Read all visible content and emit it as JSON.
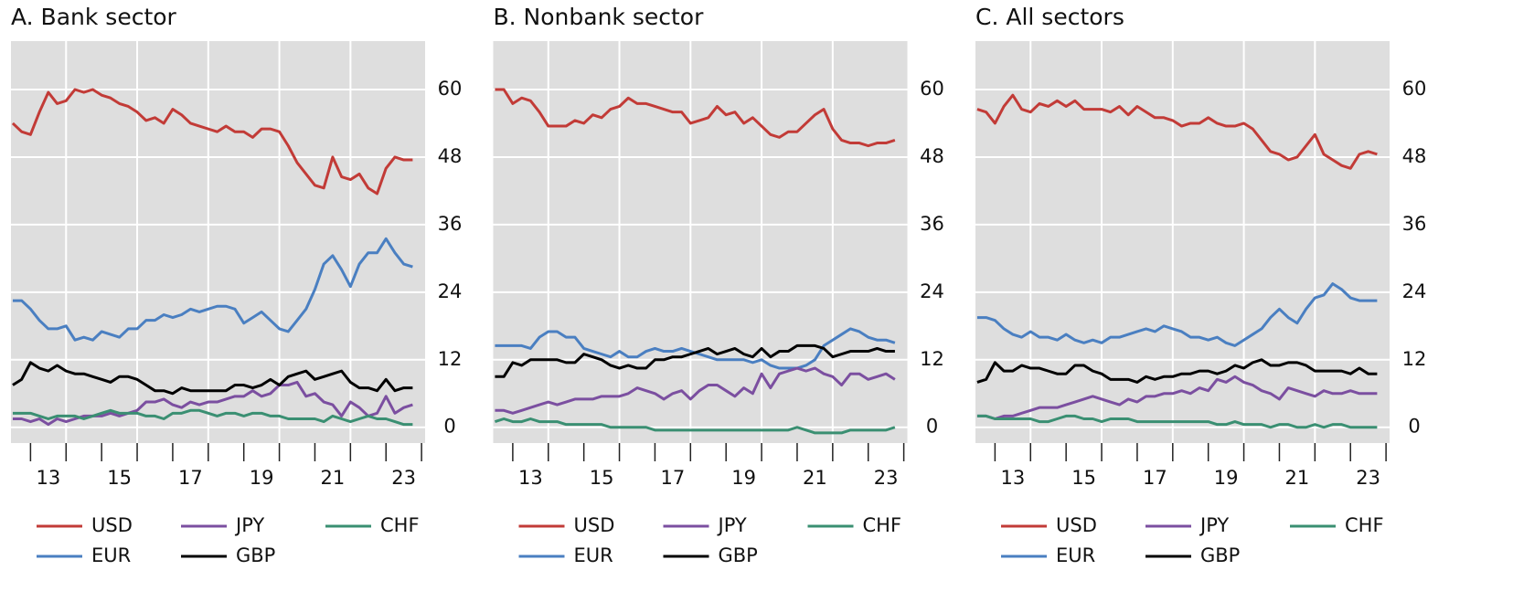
{
  "chart_data": [
    {
      "type": "line",
      "title": "A. Bank sector",
      "x": [
        2012.5,
        2012.75,
        2013,
        2013.25,
        2013.5,
        2013.75,
        2014,
        2014.25,
        2014.5,
        2014.75,
        2015,
        2015.25,
        2015.5,
        2015.75,
        2016,
        2016.25,
        2016.5,
        2016.75,
        2017,
        2017.25,
        2017.5,
        2017.75,
        2018,
        2018.25,
        2018.5,
        2018.75,
        2019,
        2019.25,
        2019.5,
        2019.75,
        2020,
        2020.25,
        2020.5,
        2020.75,
        2021,
        2021.25,
        2021.5,
        2021.75,
        2022,
        2022.25,
        2022.5,
        2022.75,
        2023,
        2023.25,
        2023.5,
        2023.75
      ],
      "series": [
        {
          "name": "USD",
          "color": "#c23b37",
          "values": [
            54,
            52.5,
            52,
            56,
            59.5,
            57.5,
            58,
            60,
            59.5,
            60,
            59,
            58.5,
            57.5,
            57,
            56,
            54.5,
            55,
            54,
            56.5,
            55.5,
            54,
            53.5,
            53,
            52.5,
            53.5,
            52.5,
            52.5,
            51.5,
            53,
            53,
            52.5,
            50,
            47,
            45,
            43,
            42.5,
            48,
            44.5,
            44,
            45,
            42.5,
            41.5,
            46,
            48,
            47.5,
            47.5
          ]
        },
        {
          "name": "EUR",
          "color": "#4a7fc1",
          "values": [
            22.5,
            22.5,
            21,
            19,
            17.5,
            17.5,
            18,
            15.5,
            16,
            15.5,
            17,
            16.5,
            16,
            17.5,
            17.5,
            19,
            19,
            20,
            19.5,
            20,
            21,
            20.5,
            21,
            21.5,
            21.5,
            21,
            18.5,
            19.5,
            20.5,
            19,
            17.5,
            17,
            19,
            21,
            24.5,
            29,
            30.5,
            28,
            25,
            29,
            31,
            31,
            33.5,
            31,
            29,
            28.5
          ]
        },
        {
          "name": "JPY",
          "color": "#7b4fa0",
          "values": [
            1.5,
            1.5,
            1,
            1.5,
            0.5,
            1.5,
            1,
            1.5,
            2,
            2,
            2,
            2.5,
            2,
            2.5,
            3,
            4.5,
            4.5,
            5,
            4,
            3.5,
            4.5,
            4,
            4.5,
            4.5,
            5,
            5.5,
            5.5,
            6.5,
            5.5,
            6,
            7.5,
            7.5,
            8,
            5.5,
            6,
            4.5,
            4,
            2,
            4.5,
            3.5,
            2,
            2.5,
            5.5,
            2.5,
            3.5,
            4
          ]
        },
        {
          "name": "GBP",
          "color": "#000000",
          "values": [
            7.5,
            8.5,
            11.5,
            10.5,
            10,
            11,
            10,
            9.5,
            9.5,
            9,
            8.5,
            8,
            9,
            9,
            8.5,
            7.5,
            6.5,
            6.5,
            6,
            7,
            6.5,
            6.5,
            6.5,
            6.5,
            6.5,
            7.5,
            7.5,
            7,
            7.5,
            8.5,
            7.5,
            9,
            9.5,
            10,
            8.5,
            9,
            9.5,
            10,
            8,
            7,
            7,
            6.5,
            8.5,
            6.5,
            7,
            7
          ]
        },
        {
          "name": "CHF",
          "color": "#3a8f72",
          "values": [
            2.5,
            2.5,
            2.5,
            2,
            1.5,
            2,
            2,
            2,
            1.5,
            2,
            2.5,
            3,
            2.5,
            2.5,
            2.5,
            2,
            2,
            1.5,
            2.5,
            2.5,
            3,
            3,
            2.5,
            2,
            2.5,
            2.5,
            2,
            2.5,
            2.5,
            2,
            2,
            1.5,
            1.5,
            1.5,
            1.5,
            1,
            2,
            1.5,
            1,
            1.5,
            2,
            1.5,
            1.5,
            1,
            0.5,
            0.5
          ]
        }
      ],
      "xlim": [
        2012.45,
        2024.1
      ],
      "ylim": [
        -2.8,
        68.6
      ],
      "yticks": [
        0,
        12,
        24,
        36,
        48,
        60
      ],
      "xticks": [
        {
          "value": 2013.5,
          "label": "13"
        },
        {
          "value": 2015.5,
          "label": "15"
        },
        {
          "value": 2017.5,
          "label": "17"
        },
        {
          "value": 2019.5,
          "label": "19"
        },
        {
          "value": 2021.5,
          "label": "21"
        },
        {
          "value": 2023.5,
          "label": "23"
        }
      ],
      "xminor": [
        2013,
        2014,
        2015,
        2016,
        2017,
        2018,
        2019,
        2020,
        2021,
        2022,
        2023,
        2024
      ],
      "xgrid": [
        2014,
        2016,
        2018,
        2020,
        2022
      ],
      "grid": true
    },
    {
      "type": "line",
      "title": "B. Nonbank sector",
      "x": [
        2012.5,
        2012.75,
        2013,
        2013.25,
        2013.5,
        2013.75,
        2014,
        2014.25,
        2014.5,
        2014.75,
        2015,
        2015.25,
        2015.5,
        2015.75,
        2016,
        2016.25,
        2016.5,
        2016.75,
        2017,
        2017.25,
        2017.5,
        2017.75,
        2018,
        2018.25,
        2018.5,
        2018.75,
        2019,
        2019.25,
        2019.5,
        2019.75,
        2020,
        2020.25,
        2020.5,
        2020.75,
        2021,
        2021.25,
        2021.5,
        2021.75,
        2022,
        2022.25,
        2022.5,
        2022.75,
        2023,
        2023.25,
        2023.5,
        2023.75
      ],
      "series": [
        {
          "name": "USD",
          "color": "#c23b37",
          "values": [
            60,
            60,
            57.5,
            58.5,
            58,
            56,
            53.5,
            53.5,
            53.5,
            54.5,
            54,
            55.5,
            55,
            56.5,
            57,
            58.5,
            57.5,
            57.5,
            57,
            56.5,
            56,
            56,
            54,
            54.5,
            55,
            57,
            55.5,
            56,
            54,
            55,
            53.5,
            52,
            51.5,
            52.5,
            52.5,
            54,
            55.5,
            56.5,
            53,
            51,
            50.5,
            50.5,
            50,
            50.5,
            50.5,
            51
          ]
        },
        {
          "name": "EUR",
          "color": "#4a7fc1",
          "values": [
            14.5,
            14.5,
            14.5,
            14.5,
            14,
            16,
            17,
            17,
            16,
            16,
            14,
            13.5,
            13,
            12.5,
            13.5,
            12.5,
            12.5,
            13.5,
            14,
            13.5,
            13.5,
            14,
            13.5,
            13,
            12.5,
            12,
            12,
            12,
            12,
            11.5,
            12,
            11,
            10.5,
            10.5,
            10.5,
            11,
            12,
            14.5,
            15.5,
            16.5,
            17.5,
            17,
            16,
            15.5,
            15.5,
            15
          ]
        },
        {
          "name": "JPY",
          "color": "#7b4fa0",
          "values": [
            3,
            3,
            2.5,
            3,
            3.5,
            4,
            4.5,
            4,
            4.5,
            5,
            5,
            5,
            5.5,
            5.5,
            5.5,
            6,
            7,
            6.5,
            6,
            5,
            6,
            6.5,
            5,
            6.5,
            7.5,
            7.5,
            6.5,
            5.5,
            7,
            6,
            9.5,
            7,
            9.5,
            10,
            10.5,
            10,
            10.5,
            9.5,
            9,
            7.5,
            9.5,
            9.5,
            8.5,
            9,
            9.5,
            8.5
          ]
        },
        {
          "name": "GBP",
          "color": "#000000",
          "values": [
            9,
            9,
            11.5,
            11,
            12,
            12,
            12,
            12,
            11.5,
            11.5,
            13,
            12.5,
            12,
            11,
            10.5,
            11,
            10.5,
            10.5,
            12,
            12,
            12.5,
            12.5,
            13,
            13.5,
            14,
            13,
            13.5,
            14,
            13,
            12.5,
            14,
            12.5,
            13.5,
            13.5,
            14.5,
            14.5,
            14.5,
            14,
            12.5,
            13,
            13.5,
            13.5,
            13.5,
            14,
            13.5,
            13.5
          ]
        },
        {
          "name": "CHF",
          "color": "#3a8f72",
          "values": [
            1,
            1.5,
            1,
            1,
            1.5,
            1,
            1,
            1,
            0.5,
            0.5,
            0.5,
            0.5,
            0.5,
            0,
            0,
            0,
            0,
            0,
            -0.5,
            -0.5,
            -0.5,
            -0.5,
            -0.5,
            -0.5,
            -0.5,
            -0.5,
            -0.5,
            -0.5,
            -0.5,
            -0.5,
            -0.5,
            -0.5,
            -0.5,
            -0.5,
            0,
            -0.5,
            -1,
            -1,
            -1,
            -1,
            -0.5,
            -0.5,
            -0.5,
            -0.5,
            -0.5,
            0
          ]
        }
      ],
      "xlim": [
        2012.45,
        2024.1
      ],
      "ylim": [
        -2.8,
        68.6
      ],
      "yticks": [
        0,
        12,
        24,
        36,
        48,
        60
      ],
      "xticks": [
        {
          "value": 2013.5,
          "label": "13"
        },
        {
          "value": 2015.5,
          "label": "15"
        },
        {
          "value": 2017.5,
          "label": "17"
        },
        {
          "value": 2019.5,
          "label": "19"
        },
        {
          "value": 2021.5,
          "label": "21"
        },
        {
          "value": 2023.5,
          "label": "23"
        }
      ],
      "xminor": [
        2013,
        2014,
        2015,
        2016,
        2017,
        2018,
        2019,
        2020,
        2021,
        2022,
        2023,
        2024
      ],
      "xgrid": [
        2014,
        2016,
        2018,
        2020,
        2022
      ],
      "grid": true
    },
    {
      "type": "line",
      "title": "C. All sectors",
      "x": [
        2012.5,
        2012.75,
        2013,
        2013.25,
        2013.5,
        2013.75,
        2014,
        2014.25,
        2014.5,
        2014.75,
        2015,
        2015.25,
        2015.5,
        2015.75,
        2016,
        2016.25,
        2016.5,
        2016.75,
        2017,
        2017.25,
        2017.5,
        2017.75,
        2018,
        2018.25,
        2018.5,
        2018.75,
        2019,
        2019.25,
        2019.5,
        2019.75,
        2020,
        2020.25,
        2020.5,
        2020.75,
        2021,
        2021.25,
        2021.5,
        2021.75,
        2022,
        2022.25,
        2022.5,
        2022.75,
        2023,
        2023.25,
        2023.5,
        2023.75
      ],
      "series": [
        {
          "name": "USD",
          "color": "#c23b37",
          "values": [
            56.5,
            56,
            54,
            57,
            59,
            56.5,
            56,
            57.5,
            57,
            58,
            57,
            58,
            56.5,
            56.5,
            56.5,
            56,
            57,
            55.5,
            57,
            56,
            55,
            55,
            54.5,
            53.5,
            54,
            54,
            55,
            54,
            53.5,
            53.5,
            54,
            53,
            51,
            49,
            48.5,
            47.5,
            48,
            50,
            52,
            48.5,
            47.5,
            46.5,
            46,
            48.5,
            49,
            48.5
          ]
        },
        {
          "name": "EUR",
          "color": "#4a7fc1",
          "values": [
            19.5,
            19.5,
            19,
            17.5,
            16.5,
            16,
            17,
            16,
            16,
            15.5,
            16.5,
            15.5,
            15,
            15.5,
            15,
            16,
            16,
            16.5,
            17,
            17.5,
            17,
            18,
            17.5,
            17,
            16,
            16,
            15.5,
            16,
            15,
            14.5,
            15.5,
            16.5,
            17.5,
            19.5,
            21,
            19.5,
            18.5,
            21,
            23,
            23.5,
            25.5,
            24.5,
            23,
            22.5,
            22.5,
            22.5
          ]
        },
        {
          "name": "JPY",
          "color": "#7b4fa0",
          "values": [
            2,
            2,
            1.5,
            2,
            2,
            2.5,
            3,
            3.5,
            3.5,
            3.5,
            4,
            4.5,
            5,
            5.5,
            5,
            4.5,
            4,
            5,
            4.5,
            5.5,
            5.5,
            6,
            6,
            6.5,
            6,
            7,
            6.5,
            8.5,
            8,
            9,
            8,
            7.5,
            6.5,
            6,
            5,
            7,
            6.5,
            6,
            5.5,
            6.5,
            6,
            6,
            6.5,
            6,
            6,
            6
          ]
        },
        {
          "name": "GBP",
          "color": "#000000",
          "values": [
            8,
            8.5,
            11.5,
            10,
            10,
            11,
            10.5,
            10.5,
            10,
            9.5,
            9.5,
            11,
            11,
            10,
            9.5,
            8.5,
            8.5,
            8.5,
            8,
            9,
            8.5,
            9,
            9,
            9.5,
            9.5,
            10,
            10,
            9.5,
            10,
            11,
            10.5,
            11.5,
            12,
            11,
            11,
            11.5,
            11.5,
            11,
            10,
            10,
            10,
            10,
            9.5,
            10.5,
            9.5,
            9.5
          ]
        },
        {
          "name": "CHF",
          "color": "#3a8f72",
          "values": [
            2,
            2,
            1.5,
            1.5,
            1.5,
            1.5,
            1.5,
            1,
            1,
            1.5,
            2,
            2,
            1.5,
            1.5,
            1,
            1.5,
            1.5,
            1.5,
            1,
            1,
            1,
            1,
            1,
            1,
            1,
            1,
            1,
            0.5,
            0.5,
            1,
            0.5,
            0.5,
            0.5,
            0,
            0.5,
            0.5,
            0,
            0,
            0.5,
            0,
            0.5,
            0.5,
            0,
            0,
            0,
            0
          ]
        }
      ],
      "xlim": [
        2012.45,
        2024.1
      ],
      "ylim": [
        -2.8,
        68.6
      ],
      "yticks": [
        0,
        12,
        24,
        36,
        48,
        60
      ],
      "xticks": [
        {
          "value": 2013.5,
          "label": "13"
        },
        {
          "value": 2015.5,
          "label": "15"
        },
        {
          "value": 2017.5,
          "label": "17"
        },
        {
          "value": 2019.5,
          "label": "19"
        },
        {
          "value": 2021.5,
          "label": "21"
        },
        {
          "value": 2023.5,
          "label": "23"
        }
      ],
      "xminor": [
        2013,
        2014,
        2015,
        2016,
        2017,
        2018,
        2019,
        2020,
        2021,
        2022,
        2023,
        2024
      ],
      "xgrid": [
        2014,
        2016,
        2018,
        2020,
        2022
      ],
      "grid": true
    }
  ]
}
